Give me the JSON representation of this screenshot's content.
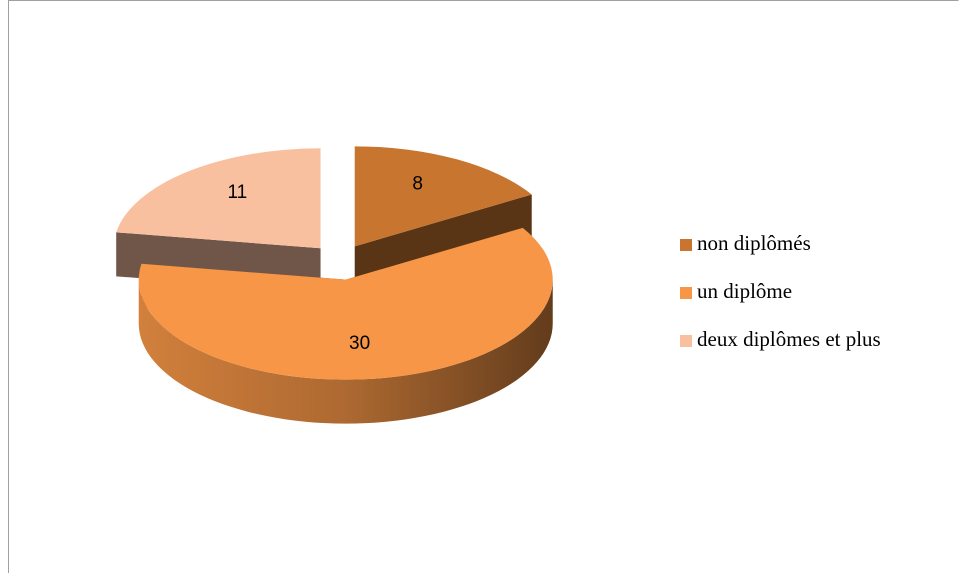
{
  "chart_data": {
    "type": "pie",
    "categories": [
      "non diplômés",
      "un diplôme",
      "deux diplômes et plus"
    ],
    "values": [
      8,
      30,
      11
    ],
    "colors": [
      "#c8762f",
      "#f79646",
      "#f9c0a0"
    ]
  }
}
